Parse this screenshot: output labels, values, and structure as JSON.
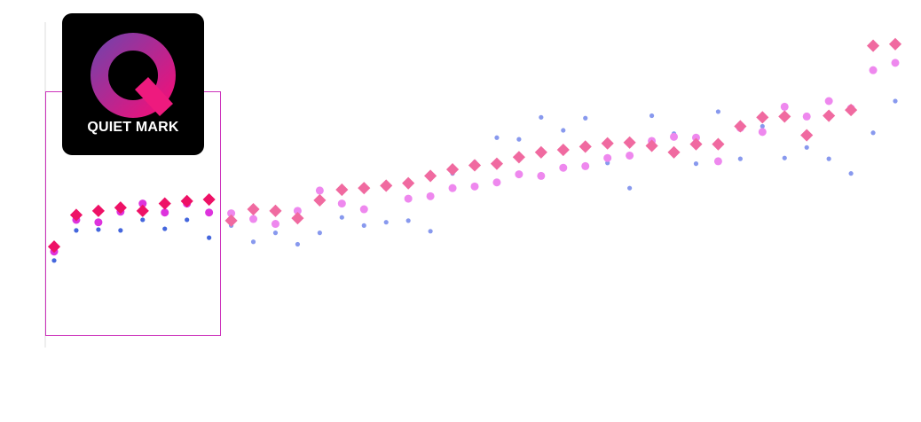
{
  "logo": {
    "text": "QUIET MARK"
  },
  "colors": {
    "diamond_highlight": "#ee1166",
    "diamond": "#f06aa0",
    "circle_highlight": "#dd33dd",
    "circle": "#ee88ee",
    "dot_highlight": "#4466dd",
    "dot": "#8899ee",
    "highlight_box": "#cc33bb",
    "axis": "#dddddd"
  },
  "chart_data": {
    "type": "scatter",
    "title": "",
    "xlabel": "",
    "ylabel": "",
    "xlim": [
      0.5,
      39.5
    ],
    "ylim": [
      0,
      400
    ],
    "grid": false,
    "legend": "none",
    "highlight_range": [
      1,
      8
    ],
    "x": [
      1,
      2,
      3,
      4,
      5,
      6,
      7,
      8,
      9,
      10,
      11,
      12,
      13,
      14,
      15,
      16,
      17,
      18,
      19,
      20,
      21,
      22,
      23,
      24,
      25,
      26,
      27,
      28,
      29,
      30,
      31,
      32,
      33,
      34,
      35,
      36,
      37,
      38,
      39
    ],
    "series": [
      {
        "marker": "diamond",
        "values": [
          124,
          163,
          168,
          172,
          168,
          177,
          180,
          182,
          156,
          170,
          168,
          159,
          181,
          194,
          196,
          199,
          202,
          211,
          219,
          224,
          226,
          234,
          240,
          243,
          247,
          251,
          252,
          248,
          240,
          250,
          250,
          272,
          283,
          284,
          261,
          285,
          292,
          371,
          373
        ]
      },
      {
        "marker": "circle",
        "values": [
          118,
          157,
          154,
          167,
          177,
          166,
          177,
          166,
          165,
          158,
          152,
          168,
          193,
          177,
          170,
          198,
          183,
          186,
          196,
          198,
          203,
          213,
          211,
          221,
          223,
          233,
          236,
          254,
          259,
          258,
          229,
          270,
          265,
          296,
          284,
          303,
          294,
          341,
          350
        ]
      },
      {
        "marker": "dot",
        "values": [
          107,
          144,
          145,
          144,
          157,
          146,
          157,
          135,
          150,
          130,
          141,
          127,
          141,
          160,
          150,
          154,
          156,
          143,
          214,
          228,
          258,
          256,
          283,
          267,
          282,
          227,
          196,
          285,
          263,
          226,
          290,
          232,
          272,
          233,
          246,
          232,
          214,
          264,
          303
        ]
      }
    ]
  }
}
